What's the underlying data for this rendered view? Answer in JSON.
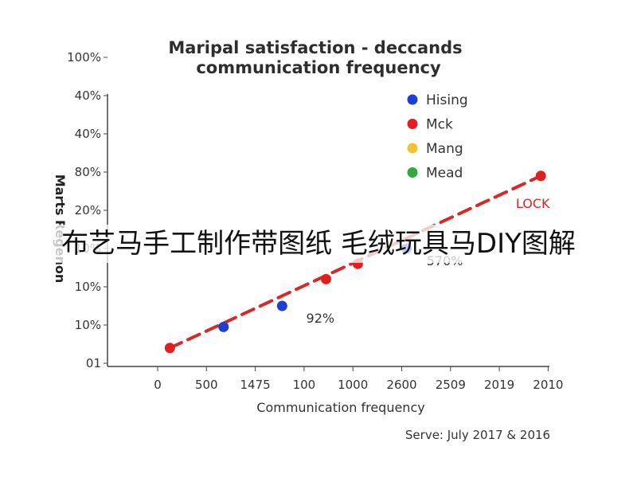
{
  "chart_data": {
    "type": "scatter",
    "title": [
      "Maripal satisfaction - deccands",
      "communication frequency"
    ],
    "xlabel": "Communication frequency",
    "ylabel": "Marts Regenon",
    "x_tick_labels": [
      "0",
      "500",
      "1475",
      "100",
      "1000",
      "2600",
      "2509",
      "2019",
      "2010"
    ],
    "y_tick_labels": [
      "100%",
      "40%",
      "40%",
      "80%",
      "20%",
      "10%",
      "10%",
      "10%",
      "01"
    ],
    "legend": [
      {
        "name": "Hising",
        "color": "#1f3fd1"
      },
      {
        "name": "Mck",
        "color": "#e02020"
      },
      {
        "name": "Mang",
        "color": "#f2c230"
      },
      {
        "name": "Mead",
        "color": "#2eab3a"
      }
    ],
    "legend_position": "top-right",
    "points": [
      {
        "x_pos": 0.25,
        "y_pos": 0.4,
        "series": "Mck"
      },
      {
        "x_pos": 1.35,
        "y_pos": 0.95,
        "series": "Hising"
      },
      {
        "x_pos": 2.55,
        "y_pos": 1.5,
        "series": "Hising"
      },
      {
        "x_pos": 3.45,
        "y_pos": 2.2,
        "series": "Mck"
      },
      {
        "x_pos": 4.1,
        "y_pos": 2.6,
        "series": "Mck"
      },
      {
        "x_pos": 5.1,
        "y_pos": 3.0,
        "series": "Hising"
      },
      {
        "x_pos": 7.85,
        "y_pos": 4.9,
        "series": "Mck"
      }
    ],
    "trendline": {
      "from": [
        0.25,
        0.4
      ],
      "to": [
        7.85,
        4.9
      ],
      "style": "dashed",
      "color": "#d42a2a",
      "label": "LOCK"
    },
    "annotations": [
      {
        "text": "92%",
        "near_point": 2
      },
      {
        "text": "570%",
        "near_point": 5
      }
    ],
    "grid": false,
    "source": "Serve: July 2017 & 2016"
  },
  "overlay_caption": "布艺马手工制作带图纸 毛绒玩具马DIY图解"
}
